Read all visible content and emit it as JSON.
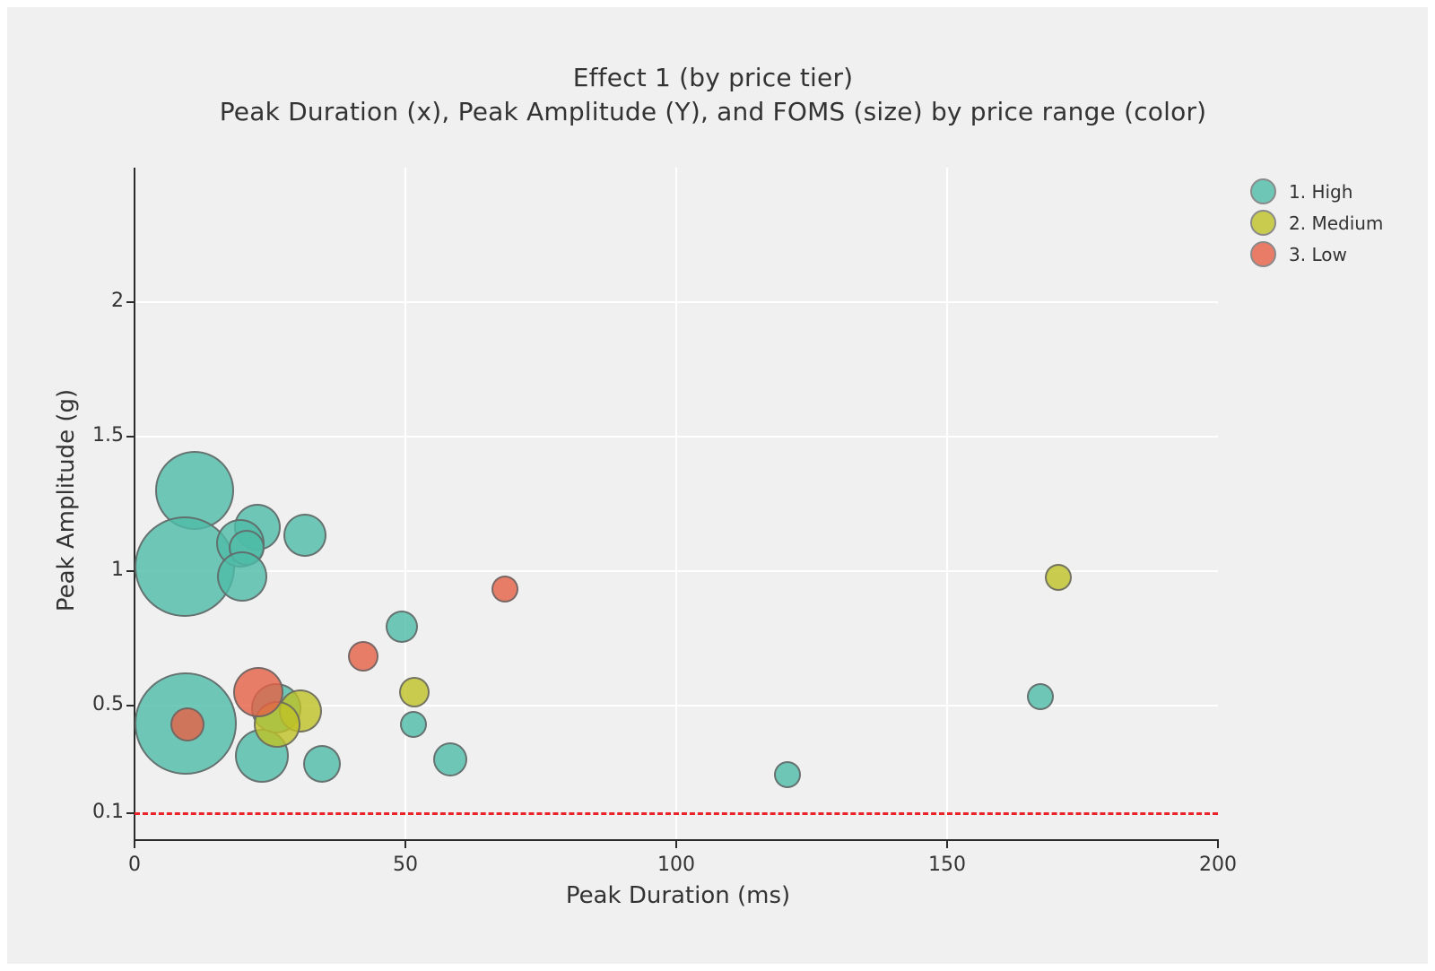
{
  "title": "Effect 1 (by price tier)",
  "subtitle": "Peak Duration (x), Peak Amplitude (Y), and FOMS (size) by price range (color)",
  "chart_data": {
    "type": "scatter",
    "variant": "bubble",
    "title": "Effect 1 (by price tier)",
    "subtitle": "Peak Duration (x), Peak Amplitude (Y), and FOMS (size) by price range (color)",
    "xlabel": "Peak Duration (ms)",
    "ylabel": "Peak Amplitude (g)",
    "xlim": [
      0,
      200
    ],
    "ylim": [
      0,
      2.5
    ],
    "x_ticks": [
      0,
      50,
      100,
      150,
      200
    ],
    "y_ticks": [
      0.1,
      0.5,
      1,
      1.5,
      2
    ],
    "x_gridlines": [
      50,
      100,
      150
    ],
    "y_gridlines": [
      0.5,
      1,
      1.5,
      2
    ],
    "grid": true,
    "legend_position": "top-right",
    "threshold_line": {
      "y": 0.1,
      "color": "#e8232a",
      "style": "dashed"
    },
    "point_format": [
      "peak_duration_ms",
      "peak_amplitude_g",
      "marker_radius_px"
    ],
    "series": [
      {
        "name": "1. High",
        "color": "#6ec6b6",
        "fill": "rgba(77,188,168,0.8)",
        "points": [
          [
            11.1,
            1.3,
            44
          ],
          [
            9.3,
            1.015,
            56
          ],
          [
            22.7,
            1.163,
            26
          ],
          [
            19.5,
            1.103,
            27
          ],
          [
            20.7,
            1.085,
            20
          ],
          [
            19.9,
            0.98,
            28
          ],
          [
            31.5,
            1.133,
            24
          ],
          [
            49.3,
            0.793,
            18
          ],
          [
            26.2,
            0.49,
            28
          ],
          [
            23.5,
            0.313,
            30
          ],
          [
            34.6,
            0.283,
            21
          ],
          [
            51.5,
            0.43,
            15
          ],
          [
            58.3,
            0.297,
            19
          ],
          [
            9.4,
            0.433,
            57
          ],
          [
            120.5,
            0.243,
            15
          ],
          [
            167.2,
            0.533,
            15
          ]
        ]
      },
      {
        "name": "2. Medium",
        "color": "#c9cb4e",
        "fill": "rgba(191,194,38,0.8)",
        "points": [
          [
            30.6,
            0.477,
            24
          ],
          [
            26.3,
            0.427,
            26
          ],
          [
            51.7,
            0.55,
            17
          ],
          [
            170.5,
            0.977,
            15
          ]
        ]
      },
      {
        "name": "3. Low",
        "color": "#e87c67",
        "fill": "rgba(230,96,69,0.8)",
        "points": [
          [
            22.8,
            0.55,
            28
          ],
          [
            9.8,
            0.43,
            19
          ],
          [
            42.2,
            0.683,
            17
          ],
          [
            68.4,
            0.933,
            15
          ]
        ]
      }
    ]
  },
  "colors": {
    "figure_background": "#f0f0f0",
    "frame": "#ffffff",
    "gridline": "#ffffff",
    "axis": "#2b2b2b",
    "text": "#333333",
    "marker_stroke": "#646464",
    "threshold_red": "#e8232a"
  }
}
